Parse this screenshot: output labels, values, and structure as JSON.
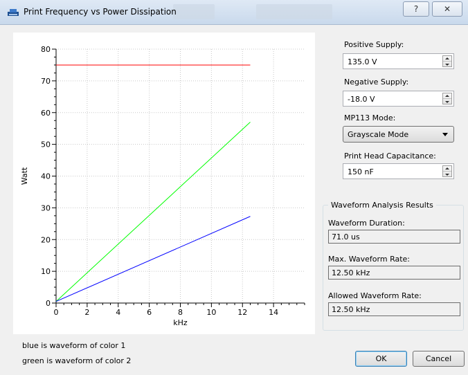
{
  "window": {
    "title": "Print Frequency vs Power Dissipation",
    "help_glyph": "?",
    "close_glyph": "✕",
    "icon": "printer-app-icon"
  },
  "controls": {
    "positive_supply": {
      "label": "Positive Supply:",
      "value": "135.0 V"
    },
    "negative_supply": {
      "label": "Negative Supply:",
      "value": "-18.0 V"
    },
    "mode": {
      "label": "MP113 Mode:",
      "value": "Grayscale Mode"
    },
    "capacitance": {
      "label": "Print Head Capacitance:",
      "value": "150 nF"
    }
  },
  "results": {
    "title": "Waveform Analysis Results",
    "duration": {
      "label": "Waveform Duration:",
      "value": "71.0 us"
    },
    "max_rate": {
      "label": "Max. Waveform Rate:",
      "value": "12.50 kHz"
    },
    "allowed_rate": {
      "label": "Allowed Waveform Rate:",
      "value": "12.50 kHz"
    }
  },
  "buttons": {
    "ok": "OK",
    "cancel": "Cancel"
  },
  "footnotes": {
    "line1": "blue is waveform of color 1",
    "line2": "green is waveform of color 2"
  },
  "chart_data": {
    "type": "line",
    "title": "",
    "xlabel": "kHz",
    "ylabel": "Watt",
    "xlim": [
      0,
      16
    ],
    "ylim": [
      0,
      80
    ],
    "xticks": [
      0,
      2,
      4,
      6,
      8,
      10,
      12,
      14
    ],
    "yticks": [
      0,
      10,
      20,
      30,
      40,
      50,
      60,
      70,
      80
    ],
    "grid": true,
    "series": [
      {
        "color": "#ff0000",
        "x": [
          0,
          12.5
        ],
        "y": [
          75,
          75
        ]
      },
      {
        "color": "#00ff00",
        "x": [
          0,
          12.5
        ],
        "y": [
          0.5,
          57
        ]
      },
      {
        "color": "#0000ff",
        "x": [
          0,
          12.5
        ],
        "y": [
          0.5,
          27.3
        ]
      }
    ]
  }
}
